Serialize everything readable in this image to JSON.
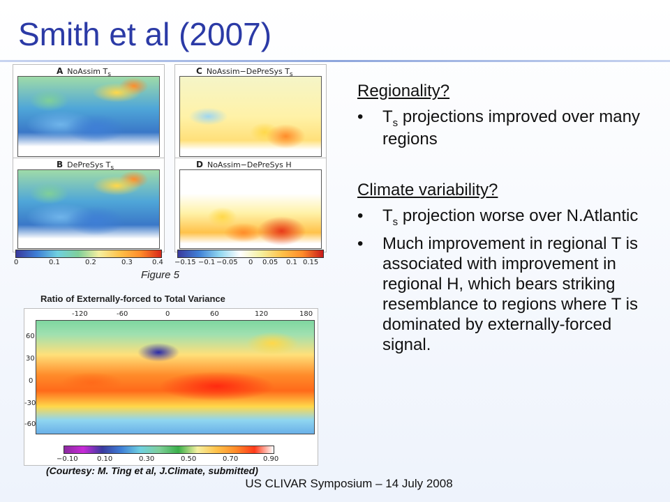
{
  "title": "Smith et al (2007)",
  "panels": [
    {
      "letter": "A",
      "label": "NoAssim T",
      "sub": "s"
    },
    {
      "letter": "C",
      "label": "NoAssim−DePreSys T",
      "sub": "s"
    },
    {
      "letter": "B",
      "label": "DePreSys T",
      "sub": "s"
    },
    {
      "letter": "D",
      "label": "NoAssim−DePreSys H",
      "sub": ""
    }
  ],
  "colorbar_left_ticks": [
    "0",
    "0.1",
    "0.2",
    "0.3",
    "0.4"
  ],
  "colorbar_right_ticks": [
    "−0.15",
    "−0.1",
    "−0.05",
    "0",
    "0.05",
    "0.1",
    "0.15"
  ],
  "figure_caption": "Figure 5",
  "ratio_title": "Ratio of Externally-forced to Total Variance",
  "ratio_xticks": [
    "-120",
    "-60",
    "0",
    "60",
    "120",
    "180"
  ],
  "ratio_yticks": [
    "60",
    "30",
    "0",
    "-30",
    "-60"
  ],
  "ratio_cbar_ticks": [
    "−0.10",
    "0.10",
    "0.30",
    "0.50",
    "0.70",
    "0.90"
  ],
  "courtesy": "(Courtesy: M. Ting et al, J.Climate, submitted)",
  "right": {
    "heading1": "Regionality?",
    "bullet1_pre": "T",
    "bullet1_sub": "s",
    "bullet1_post": " projections improved over many regions",
    "heading2": "Climate variability?",
    "bullet2_pre": "T",
    "bullet2_sub": "s",
    "bullet2_post": " projection worse over N.Atlantic",
    "bullet3": "Much improvement in regional T is associated with improvement in regional H, which bears striking resemblance to regions where T is dominated by externally-forced signal.",
    "bullet_char": "•"
  },
  "footer": "US CLIVAR Symposium  – 14 July 2008",
  "colors": {
    "title": "#2b3aa6"
  }
}
